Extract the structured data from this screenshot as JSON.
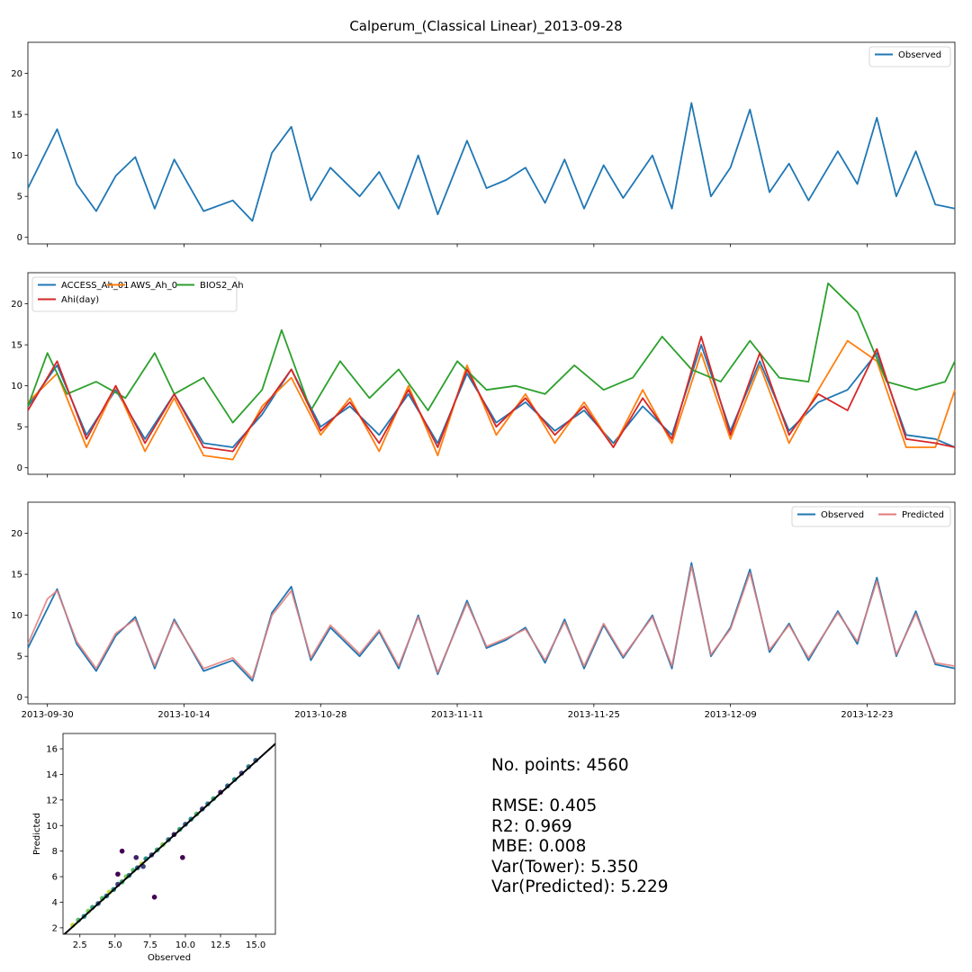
{
  "title": "Calperum_(Classical Linear)_2013-09-28",
  "colors": {
    "observed": "#1f77b4",
    "access": "#1f77b4",
    "aws": "#ff7f0e",
    "bios": "#2ca02c",
    "ahi": "#d62728",
    "predicted": "#e07b7b",
    "fit_line": "#000000"
  },
  "stats": {
    "points": "No. points: 4560",
    "rmse": "RMSE: 0.405",
    "r2": "R2: 0.969",
    "mbe": "MBE: 0.008",
    "var_tower": "Var(Tower): 5.350",
    "var_pred": "Var(Predicted): 5.229"
  },
  "chart_data": [
    {
      "type": "line",
      "x_axis": "date",
      "xlim": [
        "2013-09-28",
        "2014-01-01"
      ],
      "ylim": [
        -0.8,
        23.8
      ],
      "yticks": [
        0,
        5,
        10,
        15,
        20
      ],
      "xticks": [
        "2013-09-30",
        "2013-10-14",
        "2013-10-28",
        "2013-11-11",
        "2013-11-25",
        "2013-12-09",
        "2013-12-23"
      ],
      "show_xtick_labels": false,
      "legend": "upper right",
      "legend_ncol": 1,
      "series": [
        {
          "name": "Observed",
          "color_key": "observed",
          "x": [
            "2013-09-28",
            "2013-10-01",
            "2013-10-03",
            "2013-10-05",
            "2013-10-07",
            "2013-10-09",
            "2013-10-11",
            "2013-10-13",
            "2013-10-16",
            "2013-10-19",
            "2013-10-21",
            "2013-10-23",
            "2013-10-25",
            "2013-10-27",
            "2013-10-29",
            "2013-11-01",
            "2013-11-03",
            "2013-11-05",
            "2013-11-07",
            "2013-11-09",
            "2013-11-12",
            "2013-11-14",
            "2013-11-16",
            "2013-11-18",
            "2013-11-20",
            "2013-11-22",
            "2013-11-24",
            "2013-11-26",
            "2013-11-28",
            "2013-12-01",
            "2013-12-03",
            "2013-12-05",
            "2013-12-07",
            "2013-12-09",
            "2013-12-11",
            "2013-12-13",
            "2013-12-15",
            "2013-12-17",
            "2013-12-20",
            "2013-12-22",
            "2013-12-24",
            "2013-12-26",
            "2013-12-28",
            "2013-12-30",
            "2014-01-01"
          ],
          "y": [
            6.0,
            13.2,
            6.5,
            3.2,
            7.5,
            9.8,
            3.5,
            9.5,
            3.2,
            4.5,
            2.0,
            10.3,
            13.5,
            4.5,
            8.5,
            5.0,
            8.0,
            3.5,
            10.0,
            2.8,
            11.8,
            6.0,
            7.0,
            8.5,
            4.2,
            9.5,
            3.5,
            8.8,
            4.8,
            10.0,
            3.5,
            16.4,
            5.0,
            8.5,
            15.6,
            5.5,
            9.0,
            4.5,
            10.5,
            6.5,
            14.6,
            5.0,
            10.5,
            4.0,
            3.5
          ]
        }
      ]
    },
    {
      "type": "line",
      "x_axis": "date",
      "xlim": [
        "2013-09-28",
        "2014-01-01"
      ],
      "ylim": [
        -0.8,
        23.8
      ],
      "yticks": [
        0,
        5,
        10,
        15,
        20
      ],
      "xticks": [
        "2013-09-30",
        "2013-10-14",
        "2013-10-28",
        "2013-11-11",
        "2013-11-25",
        "2013-12-09",
        "2013-12-23"
      ],
      "show_xtick_labels": false,
      "legend": "upper left",
      "legend_ncol": 3,
      "series": [
        {
          "name": "ACCESS_Ah_01",
          "color_key": "access",
          "x": [
            "2013-09-28",
            "2013-10-01",
            "2013-10-04",
            "2013-10-07",
            "2013-10-10",
            "2013-10-13",
            "2013-10-16",
            "2013-10-19",
            "2013-10-22",
            "2013-10-25",
            "2013-10-28",
            "2013-10-31",
            "2013-11-03",
            "2013-11-06",
            "2013-11-09",
            "2013-11-12",
            "2013-11-15",
            "2013-11-18",
            "2013-11-21",
            "2013-11-24",
            "2013-11-27",
            "2013-11-30",
            "2013-12-03",
            "2013-12-06",
            "2013-12-09",
            "2013-12-12",
            "2013-12-15",
            "2013-12-18",
            "2013-12-21",
            "2013-12-24",
            "2013-12-27",
            "2013-12-30",
            "2014-01-01"
          ],
          "y": [
            7.5,
            12.5,
            4.0,
            9.5,
            3.5,
            9.0,
            3.0,
            2.5,
            6.5,
            12.0,
            5.0,
            7.5,
            4.0,
            9.0,
            3.0,
            11.5,
            5.5,
            8.0,
            4.5,
            7.0,
            3.0,
            7.5,
            4.0,
            15.0,
            4.5,
            13.0,
            4.5,
            8.0,
            9.5,
            14.0,
            4.0,
            3.5,
            2.5
          ]
        },
        {
          "name": "AWS_Ah_0",
          "color_key": "aws",
          "x": [
            "2013-09-28",
            "2013-10-01",
            "2013-10-04",
            "2013-10-07",
            "2013-10-10",
            "2013-10-13",
            "2013-10-16",
            "2013-10-19",
            "2013-10-22",
            "2013-10-25",
            "2013-10-28",
            "2013-10-31",
            "2013-11-03",
            "2013-11-06",
            "2013-11-09",
            "2013-11-12",
            "2013-11-15",
            "2013-11-18",
            "2013-11-21",
            "2013-11-24",
            "2013-11-27",
            "2013-11-30",
            "2013-12-03",
            "2013-12-06",
            "2013-12-09",
            "2013-12-12",
            "2013-12-15",
            "2013-12-18",
            "2013-12-21",
            "2013-12-24",
            "2013-12-27",
            "2013-12-30",
            "2014-01-01"
          ],
          "y": [
            8.0,
            11.5,
            2.5,
            10.0,
            2.0,
            8.5,
            1.5,
            1.0,
            7.5,
            11.0,
            4.0,
            8.5,
            2.0,
            10.0,
            1.5,
            12.5,
            4.0,
            9.0,
            3.0,
            8.0,
            2.5,
            9.5,
            3.0,
            14.0,
            3.5,
            12.5,
            3.0,
            9.5,
            15.5,
            13.0,
            2.5,
            2.5,
            9.5
          ]
        },
        {
          "name": "BIOS2_Ah",
          "color_key": "bios",
          "x": [
            "2013-09-28",
            "2013-09-30",
            "2013-10-02",
            "2013-10-05",
            "2013-10-08",
            "2013-10-11",
            "2013-10-13",
            "2013-10-16",
            "2013-10-19",
            "2013-10-22",
            "2013-10-24",
            "2013-10-27",
            "2013-10-30",
            "2013-11-02",
            "2013-11-05",
            "2013-11-08",
            "2013-11-11",
            "2013-11-14",
            "2013-11-17",
            "2013-11-20",
            "2013-11-23",
            "2013-11-26",
            "2013-11-29",
            "2013-12-02",
            "2013-12-05",
            "2013-12-08",
            "2013-12-11",
            "2013-12-14",
            "2013-12-17",
            "2013-12-19",
            "2013-12-22",
            "2013-12-25",
            "2013-12-28",
            "2013-12-31",
            "2014-01-01"
          ],
          "y": [
            7.5,
            14.0,
            9.0,
            10.5,
            8.5,
            14.0,
            9.0,
            11.0,
            5.5,
            9.5,
            16.8,
            7.0,
            13.0,
            8.5,
            12.0,
            7.0,
            13.0,
            9.5,
            10.0,
            9.0,
            12.5,
            9.5,
            11.0,
            16.0,
            12.0,
            10.5,
            15.5,
            11.0,
            10.5,
            22.5,
            19.0,
            10.5,
            9.5,
            10.5,
            13.0
          ]
        },
        {
          "name": "Ahi(day)",
          "color_key": "ahi",
          "x": [
            "2013-09-28",
            "2013-10-01",
            "2013-10-04",
            "2013-10-07",
            "2013-10-10",
            "2013-10-13",
            "2013-10-16",
            "2013-10-19",
            "2013-10-22",
            "2013-10-25",
            "2013-10-28",
            "2013-10-31",
            "2013-11-03",
            "2013-11-06",
            "2013-11-09",
            "2013-11-12",
            "2013-11-15",
            "2013-11-18",
            "2013-11-21",
            "2013-11-24",
            "2013-11-27",
            "2013-11-30",
            "2013-12-03",
            "2013-12-06",
            "2013-12-09",
            "2013-12-12",
            "2013-12-15",
            "2013-12-18",
            "2013-12-21",
            "2013-12-24",
            "2013-12-27",
            "2013-12-30",
            "2014-01-01"
          ],
          "y": [
            7.0,
            13.0,
            3.5,
            10.0,
            3.0,
            9.0,
            2.5,
            2.0,
            7.0,
            12.0,
            4.5,
            8.0,
            3.0,
            9.5,
            2.5,
            12.0,
            5.0,
            8.5,
            4.0,
            7.5,
            2.5,
            8.5,
            3.5,
            16.0,
            4.0,
            14.0,
            4.0,
            9.0,
            7.0,
            14.5,
            3.5,
            3.0,
            2.5
          ]
        }
      ]
    },
    {
      "type": "line",
      "x_axis": "date",
      "xlim": [
        "2013-09-28",
        "2014-01-01"
      ],
      "ylim": [
        -0.8,
        23.8
      ],
      "yticks": [
        0,
        5,
        10,
        15,
        20
      ],
      "xticks": [
        "2013-09-30",
        "2013-10-14",
        "2013-10-28",
        "2013-11-11",
        "2013-11-25",
        "2013-12-09",
        "2013-12-23"
      ],
      "show_xtick_labels": true,
      "legend": "upper right",
      "legend_ncol": 2,
      "series": [
        {
          "name": "Observed",
          "color_key": "observed",
          "x": [
            "2013-09-28",
            "2013-10-01",
            "2013-10-03",
            "2013-10-05",
            "2013-10-07",
            "2013-10-09",
            "2013-10-11",
            "2013-10-13",
            "2013-10-16",
            "2013-10-19",
            "2013-10-21",
            "2013-10-23",
            "2013-10-25",
            "2013-10-27",
            "2013-10-29",
            "2013-11-01",
            "2013-11-03",
            "2013-11-05",
            "2013-11-07",
            "2013-11-09",
            "2013-11-12",
            "2013-11-14",
            "2013-11-16",
            "2013-11-18",
            "2013-11-20",
            "2013-11-22",
            "2013-11-24",
            "2013-11-26",
            "2013-11-28",
            "2013-12-01",
            "2013-12-03",
            "2013-12-05",
            "2013-12-07",
            "2013-12-09",
            "2013-12-11",
            "2013-12-13",
            "2013-12-15",
            "2013-12-17",
            "2013-12-20",
            "2013-12-22",
            "2013-12-24",
            "2013-12-26",
            "2013-12-28",
            "2013-12-30",
            "2014-01-01"
          ],
          "y": [
            6.0,
            13.2,
            6.5,
            3.2,
            7.5,
            9.8,
            3.5,
            9.5,
            3.2,
            4.5,
            2.0,
            10.3,
            13.5,
            4.5,
            8.5,
            5.0,
            8.0,
            3.5,
            10.0,
            2.8,
            11.8,
            6.0,
            7.0,
            8.5,
            4.2,
            9.5,
            3.5,
            8.8,
            4.8,
            10.0,
            3.5,
            16.4,
            5.0,
            8.5,
            15.6,
            5.5,
            9.0,
            4.5,
            10.5,
            6.5,
            14.6,
            5.0,
            10.5,
            4.0,
            3.5
          ]
        },
        {
          "name": "Predicted",
          "color_key": "predicted",
          "x": [
            "2013-09-28",
            "2013-09-30",
            "2013-10-01",
            "2013-10-03",
            "2013-10-05",
            "2013-10-07",
            "2013-10-09",
            "2013-10-11",
            "2013-10-13",
            "2013-10-16",
            "2013-10-19",
            "2013-10-21",
            "2013-10-23",
            "2013-10-25",
            "2013-10-27",
            "2013-10-29",
            "2013-11-01",
            "2013-11-03",
            "2013-11-05",
            "2013-11-07",
            "2013-11-09",
            "2013-11-12",
            "2013-11-14",
            "2013-11-16",
            "2013-11-18",
            "2013-11-20",
            "2013-11-22",
            "2013-11-24",
            "2013-11-26",
            "2013-11-28",
            "2013-12-01",
            "2013-12-03",
            "2013-12-05",
            "2013-12-07",
            "2013-12-09",
            "2013-12-11",
            "2013-12-13",
            "2013-12-15",
            "2013-12-17",
            "2013-12-20",
            "2013-12-22",
            "2013-12-24",
            "2013-12-26",
            "2013-12-28",
            "2013-12-30",
            "2014-01-01"
          ],
          "y": [
            6.5,
            12.0,
            13.0,
            6.8,
            3.5,
            7.8,
            9.5,
            3.8,
            9.3,
            3.5,
            4.8,
            2.3,
            10.0,
            13.0,
            4.8,
            8.8,
            5.3,
            8.2,
            3.8,
            9.8,
            3.0,
            11.5,
            6.2,
            7.2,
            8.3,
            4.5,
            9.2,
            3.8,
            9.0,
            5.0,
            9.8,
            3.8,
            16.0,
            5.2,
            8.3,
            15.2,
            5.8,
            8.8,
            4.8,
            10.3,
            6.8,
            14.2,
            5.2,
            10.2,
            4.2,
            3.8
          ]
        }
      ]
    },
    {
      "type": "scatter",
      "xlabel": "Observed",
      "ylabel": "Predicted",
      "xlim": [
        1.3,
        16.4
      ],
      "ylim": [
        1.5,
        17.2
      ],
      "xticks": [
        2.5,
        5.0,
        7.5,
        10.0,
        12.5,
        15.0
      ],
      "yticks": [
        2,
        4,
        6,
        8,
        10,
        12,
        14,
        16
      ],
      "colormap": "viridis",
      "fit_line": {
        "x": [
          1.3,
          16.4
        ],
        "y": [
          1.4,
          16.4
        ]
      },
      "x": [
        2.0,
        2.4,
        2.8,
        3.1,
        3.4,
        3.8,
        4.1,
        4.4,
        4.6,
        4.9,
        5.2,
        5.5,
        5.8,
        6.0,
        6.3,
        6.6,
        6.9,
        7.2,
        7.6,
        8.0,
        8.4,
        8.8,
        9.2,
        9.6,
        10.0,
        10.4,
        10.8,
        11.2,
        11.6,
        12.0,
        12.5,
        13.0,
        13.5,
        14.0,
        14.5,
        15.0,
        5.5,
        9.8,
        7.8,
        6.5,
        5.2,
        7.0
      ],
      "y": [
        2.2,
        2.6,
        2.9,
        3.3,
        3.6,
        3.9,
        4.3,
        4.5,
        4.8,
        5.0,
        5.4,
        5.6,
        6.0,
        6.1,
        6.5,
        6.7,
        7.0,
        7.4,
        7.7,
        8.1,
        8.5,
        8.9,
        9.3,
        9.7,
        10.1,
        10.5,
        10.9,
        11.3,
        11.7,
        12.1,
        12.6,
        13.1,
        13.6,
        14.1,
        14.6,
        15.1,
        8.0,
        7.5,
        4.4,
        7.5,
        6.2,
        6.8
      ],
      "c": [
        0.9,
        0.7,
        0.5,
        0.8,
        0.6,
        0.3,
        0.7,
        0.4,
        0.9,
        0.5,
        0.2,
        0.6,
        0.8,
        0.4,
        0.7,
        0.3,
        0.9,
        0.5,
        0.2,
        0.6,
        0.8,
        0.4,
        0.1,
        0.6,
        0.3,
        0.5,
        0.7,
        0.2,
        0.4,
        0.6,
        0.1,
        0.3,
        0.5,
        0.2,
        0.4,
        0.3,
        0.0,
        0.0,
        0.0,
        0.1,
        0.0,
        0.2
      ]
    }
  ]
}
